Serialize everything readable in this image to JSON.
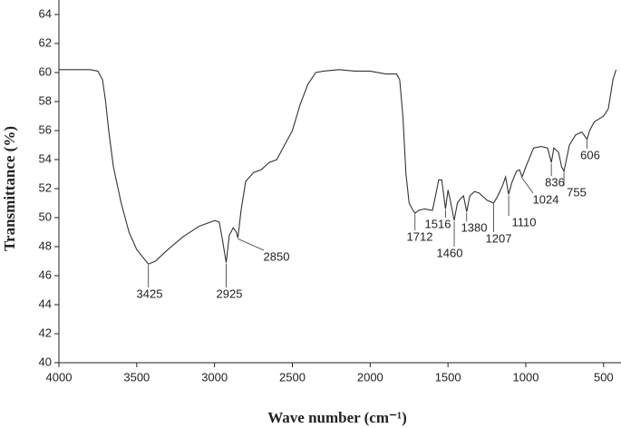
{
  "chart_data": {
    "type": "line",
    "xlabel": "Wave number (cm⁻¹)",
    "ylabel": "Transmittance (%)",
    "color": "#333333",
    "xlim": [
      4000,
      400
    ],
    "xticks": [
      4000,
      3500,
      3000,
      2500,
      2000,
      1500,
      1000,
      500
    ],
    "ylim": [
      40,
      65
    ],
    "yticks": [
      40,
      42,
      44,
      46,
      48,
      50,
      52,
      54,
      56,
      58,
      60,
      62,
      64
    ],
    "x": [
      4000,
      3800,
      3750,
      3720,
      3700,
      3680,
      3650,
      3600,
      3550,
      3500,
      3425,
      3380,
      3300,
      3200,
      3100,
      3000,
      2970,
      2950,
      2925,
      2905,
      2880,
      2860,
      2850,
      2830,
      2800,
      2750,
      2700,
      2650,
      2600,
      2550,
      2500,
      2450,
      2400,
      2350,
      2300,
      2200,
      2100,
      2000,
      1900,
      1830,
      1810,
      1790,
      1770,
      1750,
      1730,
      1712,
      1690,
      1650,
      1600,
      1580,
      1560,
      1540,
      1516,
      1500,
      1485,
      1460,
      1440,
      1420,
      1400,
      1380,
      1360,
      1330,
      1300,
      1250,
      1207,
      1180,
      1150,
      1130,
      1110,
      1090,
      1060,
      1040,
      1024,
      1000,
      950,
      900,
      860,
      836,
      820,
      790,
      770,
      755,
      720,
      680,
      640,
      606,
      590,
      560,
      530,
      500,
      470,
      440,
      420
    ],
    "values": [
      60.2,
      60.2,
      60.1,
      59.5,
      58,
      56,
      53.5,
      51,
      49,
      47.8,
      46.8,
      47,
      47.8,
      48.7,
      49.4,
      49.8,
      49.7,
      48.5,
      46.9,
      48.8,
      49.3,
      49,
      48.6,
      50.5,
      52.5,
      53.1,
      53.3,
      53.8,
      54,
      55,
      56,
      57.8,
      59.2,
      60,
      60.1,
      60.2,
      60.1,
      60.1,
      59.9,
      59.9,
      59.5,
      57,
      53,
      51,
      50.6,
      50.3,
      50.5,
      50.6,
      50.5,
      51.5,
      52.6,
      52.6,
      50.6,
      51.9,
      51.2,
      49.8,
      51,
      51.3,
      51.5,
      50.4,
      51.5,
      51.8,
      51.7,
      51.2,
      51,
      51.5,
      52.2,
      52.8,
      51.6,
      52.4,
      53.2,
      53.3,
      52.8,
      53.5,
      54.8,
      54.9,
      54.8,
      53.8,
      54.8,
      54.5,
      53.5,
      53.2,
      55,
      55.7,
      55.9,
      55.4,
      56,
      56.6,
      56.8,
      57,
      57.5,
      59.5,
      60.2
    ],
    "peaks": [
      {
        "x": 3425,
        "y": 46.8
      },
      {
        "x": 2925,
        "y": 46.9
      },
      {
        "x": 2850,
        "y": 48.6
      },
      {
        "x": 1712,
        "y": 50.3
      },
      {
        "x": 1516,
        "y": 50.6
      },
      {
        "x": 1460,
        "y": 49.8
      },
      {
        "x": 1380,
        "y": 50.4
      },
      {
        "x": 1207,
        "y": 51
      },
      {
        "x": 1110,
        "y": 51.6
      },
      {
        "x": 1024,
        "y": 52.8
      },
      {
        "x": 836,
        "y": 53.8
      },
      {
        "x": 755,
        "y": 53.2
      },
      {
        "x": 606,
        "y": 55.4
      }
    ]
  }
}
